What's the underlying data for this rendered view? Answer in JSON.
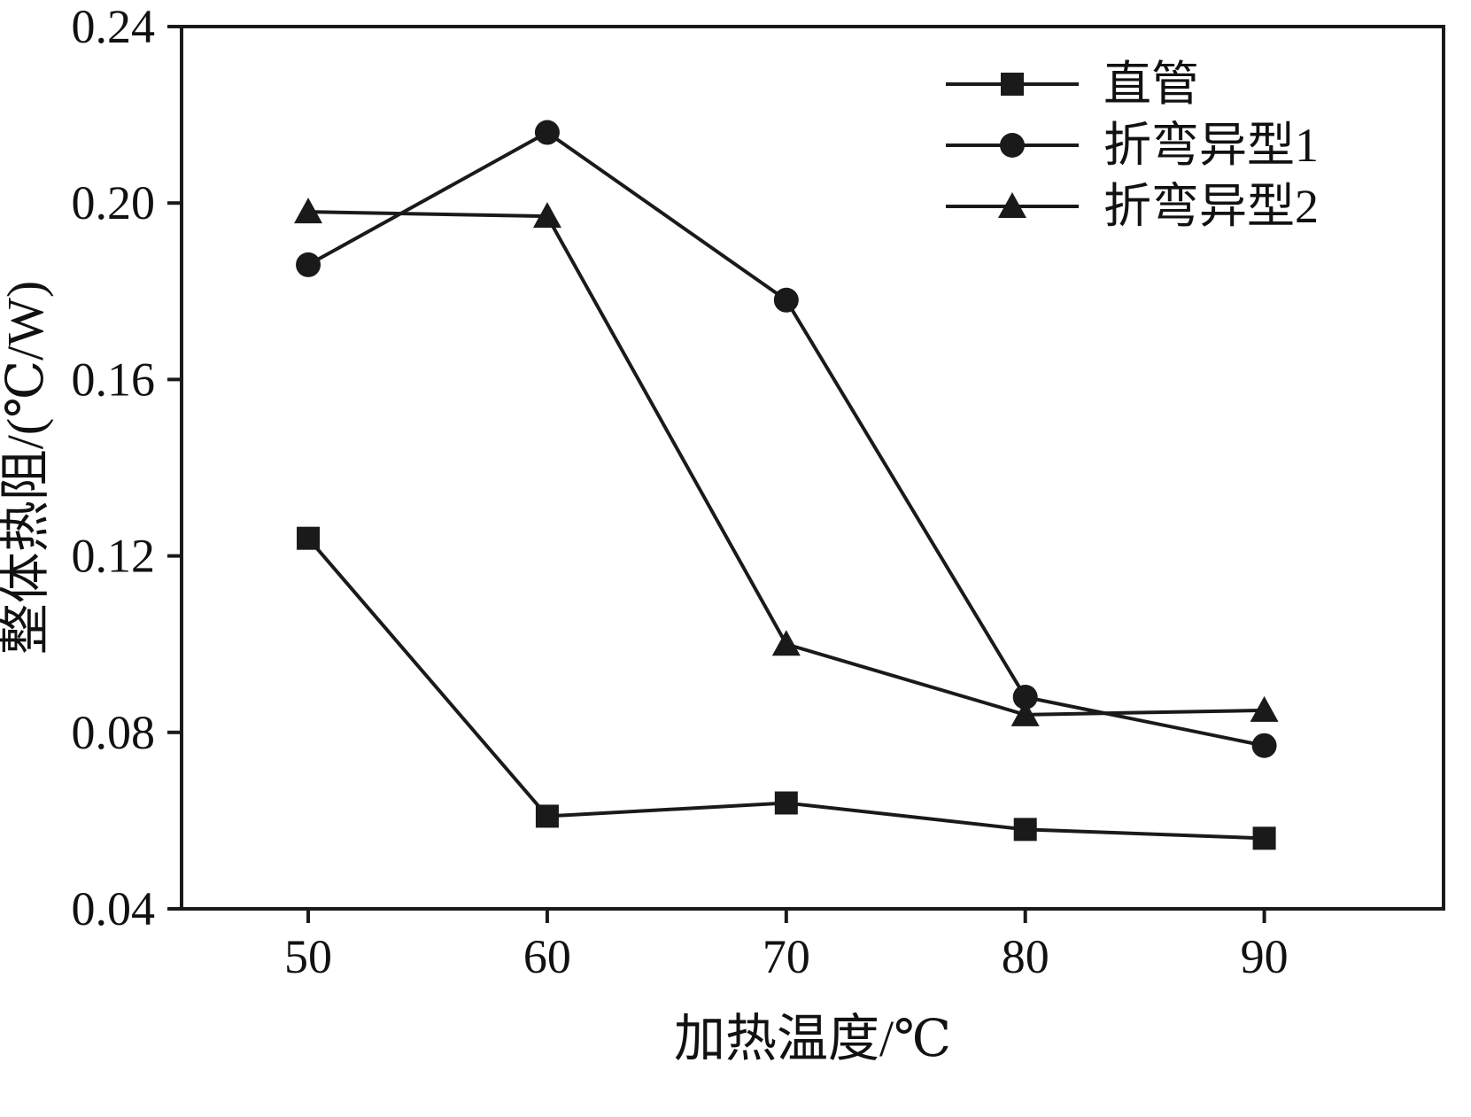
{
  "chart_data": {
    "type": "line",
    "x": [
      50,
      60,
      70,
      80,
      90
    ],
    "series": [
      {
        "name": "直管",
        "marker": "square",
        "values": [
          0.124,
          0.061,
          0.064,
          0.058,
          0.056
        ]
      },
      {
        "name": "折弯异型1",
        "marker": "circle",
        "values": [
          0.186,
          0.216,
          0.178,
          0.088,
          0.077
        ]
      },
      {
        "name": "折弯异型2",
        "marker": "triangle",
        "values": [
          0.198,
          0.197,
          0.1,
          0.084,
          0.085
        ]
      }
    ],
    "title": "",
    "xlabel": "加热温度/℃",
    "ylabel": "整体热阻/(℃/W)",
    "xlim": [
      44.7,
      97.5
    ],
    "ylim": [
      0.04,
      0.24
    ],
    "xticks": [
      50,
      60,
      70,
      80,
      90
    ],
    "yticks": [
      0.04,
      0.08,
      0.12,
      0.16,
      0.2,
      0.24
    ],
    "grid": false,
    "legend_position": "top-right",
    "line_color": "#1a1a1a",
    "background_color": "#ffffff"
  }
}
